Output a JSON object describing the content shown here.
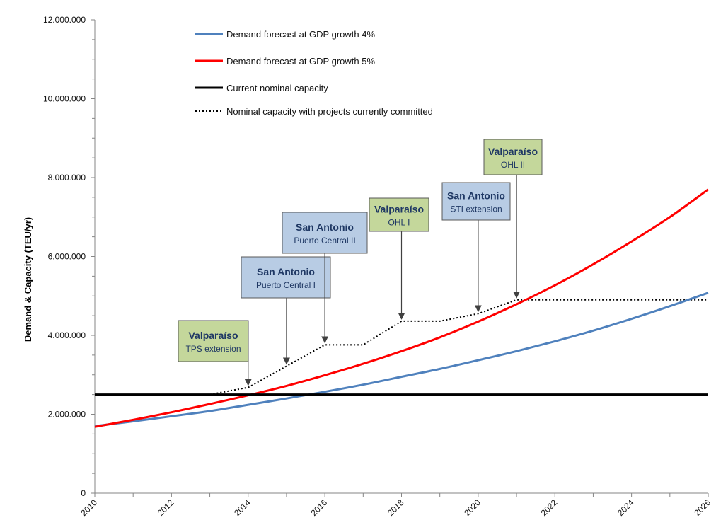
{
  "chart_data": {
    "type": "line",
    "title": "",
    "xlabel": "",
    "ylabel": "Demand & Capacity (TEU/yr)",
    "xlim": [
      2010,
      2026
    ],
    "ylim": [
      0,
      12000000
    ],
    "x_ticks": [
      "2010",
      "2012",
      "2014",
      "2016",
      "2018",
      "2020",
      "2022",
      "2024",
      "2026"
    ],
    "y_ticks": [
      {
        "value": 0,
        "label": "0"
      },
      {
        "value": 2000000,
        "label": "2.000.000"
      },
      {
        "value": 4000000,
        "label": "4.000.000"
      },
      {
        "value": 6000000,
        "label": "6.000.000"
      },
      {
        "value": 8000000,
        "label": "8.000.000"
      },
      {
        "value": 10000000,
        "label": "10.000.000"
      },
      {
        "value": 12000000,
        "label": "12.000.000"
      }
    ],
    "grid": false,
    "legend_position": "top-left",
    "series": [
      {
        "name": "Demand forecast at GDP growth 4%",
        "color": "#4f81bd",
        "style": "solid",
        "x": [
          2010,
          2011,
          2012,
          2013,
          2014,
          2015,
          2016,
          2017,
          2018,
          2019,
          2020,
          2021,
          2022,
          2023,
          2024,
          2025,
          2026
        ],
        "y": [
          1700000,
          1820000,
          1950000,
          2080000,
          2240000,
          2400000,
          2570000,
          2750000,
          2950000,
          3150000,
          3370000,
          3600000,
          3850000,
          4120000,
          4420000,
          4740000,
          5080000
        ]
      },
      {
        "name": "Demand forecast at GDP growth 5%",
        "color": "#ff0000",
        "style": "solid",
        "x": [
          2010,
          2011,
          2012,
          2013,
          2014,
          2015,
          2016,
          2017,
          2018,
          2019,
          2020,
          2021,
          2022,
          2023,
          2024,
          2025,
          2026
        ],
        "y": [
          1680000,
          1860000,
          2050000,
          2260000,
          2480000,
          2720000,
          2990000,
          3280000,
          3600000,
          3950000,
          4350000,
          4790000,
          5270000,
          5800000,
          6380000,
          7000000,
          7700000
        ]
      },
      {
        "name": "Current nominal capacity",
        "color": "#000000",
        "style": "solid",
        "x": [
          2010,
          2026
        ],
        "y": [
          2500000,
          2500000
        ]
      },
      {
        "name": "Nominal capacity with projects currently committed",
        "color": "#000000",
        "style": "dotted",
        "x": [
          2013,
          2014,
          2015,
          2016,
          2017,
          2018,
          2019,
          2020,
          2021,
          2022,
          2023,
          2024,
          2025,
          2026
        ],
        "y": [
          2500000,
          2680000,
          3220000,
          3760000,
          3760000,
          4360000,
          4360000,
          4550000,
          4900000,
          4900000,
          4900000,
          4900000,
          4900000,
          4900000
        ]
      }
    ],
    "annotations": [
      {
        "title": "Valparaíso",
        "subtitle": "TPS extension",
        "x": 2014,
        "y": 2680000,
        "fill": "#c4d79b"
      },
      {
        "title": "San Antonio",
        "subtitle": "Puerto Central I",
        "x": 2015,
        "y": 3220000,
        "fill": "#b8cce4"
      },
      {
        "title": "San Antonio",
        "subtitle": "Puerto Central II",
        "x": 2016,
        "y": 3760000,
        "fill": "#b8cce4"
      },
      {
        "title": "Valparaíso",
        "subtitle": "OHL I",
        "x": 2018,
        "y": 4360000,
        "fill": "#c4d79b"
      },
      {
        "title": "San Antonio",
        "subtitle": "STI extension",
        "x": 2020,
        "y": 4550000,
        "fill": "#b8cce4"
      },
      {
        "title": "Valparaíso",
        "subtitle": "OHL II",
        "x": 2021,
        "y": 4900000,
        "fill": "#c4d79b"
      }
    ]
  }
}
